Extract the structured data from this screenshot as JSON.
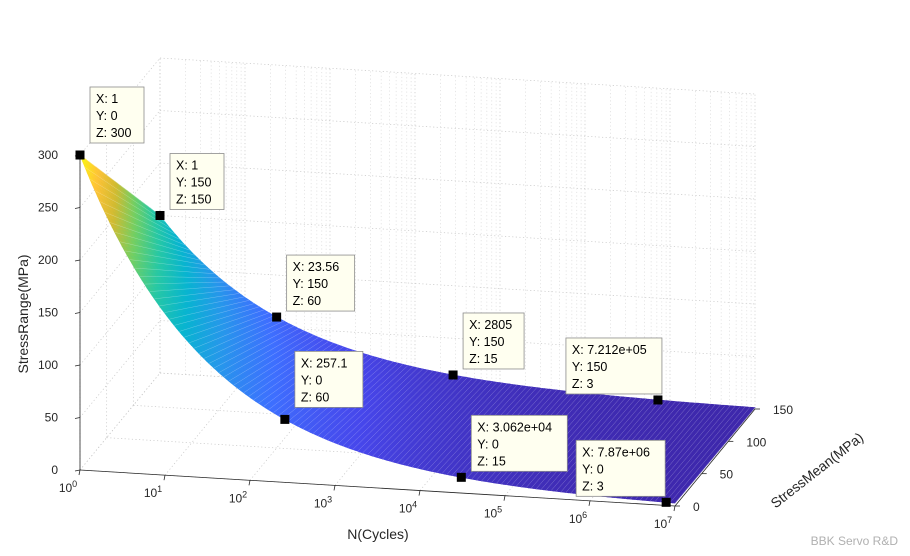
{
  "chart_data": {
    "type": "surface3d",
    "title": "",
    "xlabel": "N(Cycles)",
    "ylabel": "StressMean(MPa)",
    "zlabel": "StressRange(MPa)",
    "x_scale": "log",
    "xlim": [
      1,
      10000000
    ],
    "ylim": [
      0,
      150
    ],
    "zlim": [
      0,
      300
    ],
    "grid": true,
    "colormap": "parula",
    "x_ticks": [
      {
        "base": "10",
        "exp": "0"
      },
      {
        "base": "10",
        "exp": "1"
      },
      {
        "base": "10",
        "exp": "2"
      },
      {
        "base": "10",
        "exp": "3"
      },
      {
        "base": "10",
        "exp": "4"
      },
      {
        "base": "10",
        "exp": "5"
      },
      {
        "base": "10",
        "exp": "6"
      },
      {
        "base": "10",
        "exp": "7"
      }
    ],
    "y_ticks": [
      "0",
      "50",
      "100",
      "150"
    ],
    "z_ticks": [
      "0",
      "50",
      "100",
      "150",
      "200",
      "250",
      "300"
    ],
    "datatips": [
      {
        "x_label": "X: 1",
        "y_label": "Y: 0",
        "z_label": "Z: 300",
        "x": 1,
        "y": 0,
        "z": 300
      },
      {
        "x_label": "X: 1",
        "y_label": "Y: 150",
        "z_label": "Z: 150",
        "x": 1,
        "y": 150,
        "z": 150
      },
      {
        "x_label": "X: 23.56",
        "y_label": "Y: 150",
        "z_label": "Z: 60",
        "x": 23.56,
        "y": 150,
        "z": 60
      },
      {
        "x_label": "X: 2805",
        "y_label": "Y: 150",
        "z_label": "Z: 15",
        "x": 2805,
        "y": 150,
        "z": 15
      },
      {
        "x_label": "X: 7.212e+05",
        "y_label": "Y: 150",
        "z_label": "Z: 3",
        "x": 721200,
        "y": 150,
        "z": 3
      },
      {
        "x_label": "X: 257.1",
        "y_label": "Y: 0",
        "z_label": "Z: 60",
        "x": 257.1,
        "y": 0,
        "z": 60
      },
      {
        "x_label": "X: 3.062e+04",
        "y_label": "Y: 0",
        "z_label": "Z: 15",
        "x": 30620,
        "y": 0,
        "z": 15
      },
      {
        "x_label": "X: 7.87e+06",
        "y_label": "Y: 0",
        "z_label": "Z: 3",
        "x": 7870000,
        "y": 0,
        "z": 3
      }
    ]
  },
  "watermark": "BBK Servo R&D"
}
